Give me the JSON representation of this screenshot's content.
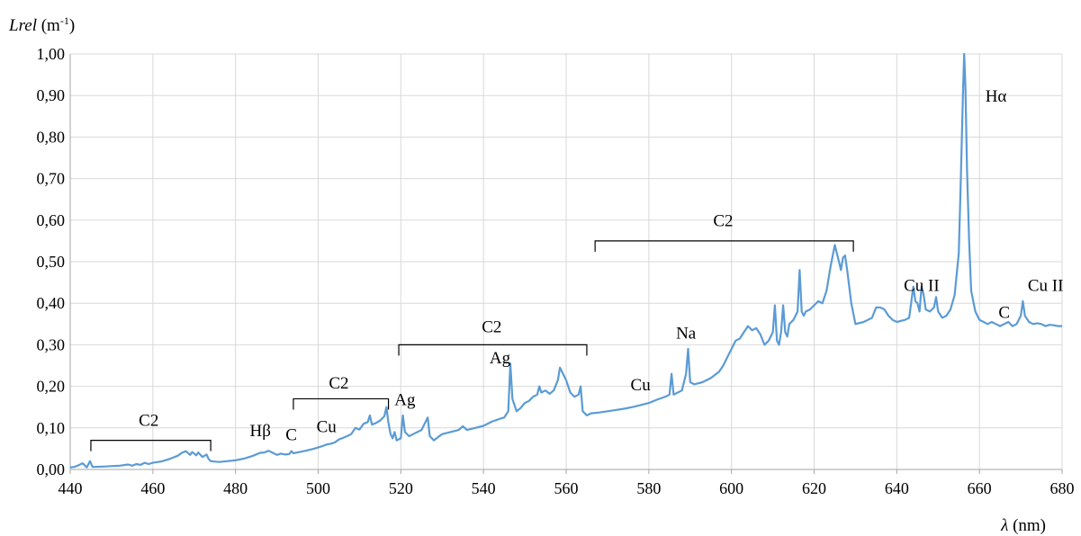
{
  "chart_data": {
    "type": "line",
    "title": "",
    "ylabel": {
      "italic": "Lrel",
      "unit_prefix": " (m",
      "unit_sup": "-1",
      "unit_suffix": ")"
    },
    "xlabel": {
      "italic": "λ",
      "unit": " (nm)"
    },
    "xlim": [
      440,
      680
    ],
    "ylim": [
      0,
      1
    ],
    "x_ticks": [
      440,
      460,
      480,
      500,
      520,
      540,
      560,
      580,
      600,
      620,
      640,
      660,
      680
    ],
    "y_ticks": [
      0,
      0.1,
      0.2,
      0.3,
      0.4,
      0.5,
      0.6,
      0.7,
      0.8,
      0.9,
      1.0
    ],
    "y_tick_labels": [
      "0,00",
      "0,10",
      "0,20",
      "0,30",
      "0,40",
      "0,50",
      "0,60",
      "0,70",
      "0,80",
      "0,90",
      "1,00"
    ],
    "grid": "vertical-and-horizontal",
    "line_color": "#5b9bd5",
    "series": [
      {
        "points": [
          [
            440,
            0.005
          ],
          [
            441,
            0.006
          ],
          [
            442,
            0.01
          ],
          [
            443,
            0.015
          ],
          [
            444,
            0.005
          ],
          [
            444.8,
            0.02
          ],
          [
            445.4,
            0.006
          ],
          [
            448,
            0.007
          ],
          [
            452,
            0.009
          ],
          [
            454,
            0.012
          ],
          [
            455,
            0.009
          ],
          [
            456,
            0.013
          ],
          [
            457,
            0.011
          ],
          [
            458,
            0.016
          ],
          [
            459,
            0.013
          ],
          [
            460,
            0.016
          ],
          [
            462,
            0.019
          ],
          [
            464,
            0.025
          ],
          [
            466,
            0.033
          ],
          [
            467,
            0.04
          ],
          [
            468,
            0.044
          ],
          [
            469,
            0.035
          ],
          [
            469.5,
            0.042
          ],
          [
            470.5,
            0.034
          ],
          [
            471,
            0.041
          ],
          [
            472,
            0.03
          ],
          [
            473,
            0.036
          ],
          [
            473.5,
            0.025
          ],
          [
            474,
            0.02
          ],
          [
            476,
            0.018
          ],
          [
            478,
            0.02
          ],
          [
            480,
            0.022
          ],
          [
            482,
            0.026
          ],
          [
            484,
            0.032
          ],
          [
            486,
            0.04
          ],
          [
            487,
            0.041
          ],
          [
            488,
            0.045
          ],
          [
            489,
            0.04
          ],
          [
            490,
            0.035
          ],
          [
            491,
            0.038
          ],
          [
            492,
            0.036
          ],
          [
            493,
            0.037
          ],
          [
            493.5,
            0.044
          ],
          [
            494,
            0.039
          ],
          [
            495,
            0.041
          ],
          [
            497,
            0.045
          ],
          [
            499,
            0.05
          ],
          [
            501,
            0.056
          ],
          [
            502,
            0.06
          ],
          [
            503,
            0.062
          ],
          [
            504,
            0.065
          ],
          [
            505,
            0.072
          ],
          [
            506,
            0.076
          ],
          [
            507,
            0.08
          ],
          [
            508,
            0.085
          ],
          [
            509,
            0.1
          ],
          [
            510,
            0.096
          ],
          [
            511,
            0.11
          ],
          [
            512,
            0.114
          ],
          [
            512.5,
            0.13
          ],
          [
            513,
            0.108
          ],
          [
            514,
            0.112
          ],
          [
            515,
            0.118
          ],
          [
            516,
            0.128
          ],
          [
            516.5,
            0.15
          ],
          [
            517,
            0.112
          ],
          [
            517.5,
            0.085
          ],
          [
            518,
            0.075
          ],
          [
            518.5,
            0.09
          ],
          [
            519,
            0.07
          ],
          [
            520,
            0.075
          ],
          [
            520.5,
            0.13
          ],
          [
            521,
            0.09
          ],
          [
            522,
            0.08
          ],
          [
            523,
            0.085
          ],
          [
            524,
            0.09
          ],
          [
            525,
            0.095
          ],
          [
            526,
            0.115
          ],
          [
            526.5,
            0.125
          ],
          [
            527,
            0.08
          ],
          [
            528,
            0.07
          ],
          [
            529,
            0.078
          ],
          [
            530,
            0.085
          ],
          [
            532,
            0.09
          ],
          [
            534,
            0.095
          ],
          [
            535,
            0.104
          ],
          [
            536,
            0.095
          ],
          [
            538,
            0.1
          ],
          [
            540,
            0.105
          ],
          [
            542,
            0.115
          ],
          [
            544,
            0.122
          ],
          [
            545,
            0.125
          ],
          [
            546,
            0.14
          ],
          [
            546.5,
            0.255
          ],
          [
            547,
            0.17
          ],
          [
            548,
            0.14
          ],
          [
            549,
            0.148
          ],
          [
            550,
            0.16
          ],
          [
            551,
            0.165
          ],
          [
            552,
            0.175
          ],
          [
            553,
            0.18
          ],
          [
            553.5,
            0.2
          ],
          [
            554,
            0.185
          ],
          [
            555,
            0.19
          ],
          [
            556,
            0.182
          ],
          [
            557,
            0.19
          ],
          [
            558,
            0.215
          ],
          [
            558.5,
            0.245
          ],
          [
            559,
            0.235
          ],
          [
            560,
            0.215
          ],
          [
            561,
            0.185
          ],
          [
            562,
            0.175
          ],
          [
            563,
            0.18
          ],
          [
            563.5,
            0.2
          ],
          [
            564,
            0.14
          ],
          [
            565,
            0.13
          ],
          [
            566,
            0.135
          ],
          [
            568,
            0.137
          ],
          [
            570,
            0.14
          ],
          [
            572,
            0.143
          ],
          [
            574,
            0.146
          ],
          [
            576,
            0.15
          ],
          [
            578,
            0.155
          ],
          [
            580,
            0.16
          ],
          [
            582,
            0.168
          ],
          [
            584,
            0.175
          ],
          [
            585,
            0.18
          ],
          [
            585.5,
            0.23
          ],
          [
            586,
            0.18
          ],
          [
            587,
            0.185
          ],
          [
            588,
            0.19
          ],
          [
            589,
            0.23
          ],
          [
            589.5,
            0.29
          ],
          [
            590,
            0.21
          ],
          [
            591,
            0.205
          ],
          [
            593,
            0.21
          ],
          [
            595,
            0.22
          ],
          [
            597,
            0.235
          ],
          [
            598,
            0.25
          ],
          [
            599,
            0.27
          ],
          [
            600,
            0.29
          ],
          [
            601,
            0.31
          ],
          [
            602,
            0.315
          ],
          [
            603,
            0.33
          ],
          [
            604,
            0.345
          ],
          [
            605,
            0.335
          ],
          [
            606,
            0.34
          ],
          [
            607,
            0.325
          ],
          [
            608,
            0.3
          ],
          [
            609,
            0.31
          ],
          [
            610,
            0.33
          ],
          [
            610.5,
            0.395
          ],
          [
            611,
            0.31
          ],
          [
            611.5,
            0.3
          ],
          [
            612,
            0.33
          ],
          [
            612.5,
            0.395
          ],
          [
            613,
            0.33
          ],
          [
            613.5,
            0.32
          ],
          [
            614,
            0.35
          ],
          [
            615,
            0.36
          ],
          [
            616,
            0.38
          ],
          [
            616.5,
            0.48
          ],
          [
            617,
            0.38
          ],
          [
            617.5,
            0.37
          ],
          [
            618,
            0.38
          ],
          [
            619,
            0.385
          ],
          [
            620,
            0.395
          ],
          [
            621,
            0.405
          ],
          [
            622,
            0.4
          ],
          [
            623,
            0.43
          ],
          [
            624,
            0.49
          ],
          [
            625,
            0.54
          ],
          [
            626,
            0.5
          ],
          [
            626.5,
            0.48
          ],
          [
            627,
            0.51
          ],
          [
            627.5,
            0.515
          ],
          [
            628,
            0.48
          ],
          [
            629,
            0.4
          ],
          [
            630,
            0.35
          ],
          [
            632,
            0.355
          ],
          [
            633,
            0.36
          ],
          [
            634,
            0.365
          ],
          [
            635,
            0.39
          ],
          [
            636,
            0.39
          ],
          [
            637,
            0.385
          ],
          [
            638,
            0.37
          ],
          [
            639,
            0.36
          ],
          [
            640,
            0.355
          ],
          [
            642,
            0.36
          ],
          [
            643,
            0.365
          ],
          [
            644,
            0.44
          ],
          [
            644.5,
            0.405
          ],
          [
            645,
            0.4
          ],
          [
            645.5,
            0.38
          ],
          [
            646,
            0.44
          ],
          [
            646.5,
            0.42
          ],
          [
            647,
            0.385
          ],
          [
            648,
            0.38
          ],
          [
            649,
            0.39
          ],
          [
            649.5,
            0.415
          ],
          [
            650,
            0.38
          ],
          [
            651,
            0.365
          ],
          [
            652,
            0.37
          ],
          [
            653,
            0.385
          ],
          [
            654,
            0.42
          ],
          [
            655,
            0.52
          ],
          [
            655.5,
            0.7
          ],
          [
            656,
            0.9
          ],
          [
            656.3,
            1.0
          ],
          [
            656.6,
            0.92
          ],
          [
            657,
            0.72
          ],
          [
            657.5,
            0.55
          ],
          [
            658,
            0.43
          ],
          [
            659,
            0.38
          ],
          [
            660,
            0.36
          ],
          [
            661,
            0.355
          ],
          [
            662,
            0.35
          ],
          [
            663,
            0.355
          ],
          [
            664,
            0.35
          ],
          [
            665,
            0.345
          ],
          [
            666,
            0.35
          ],
          [
            667,
            0.355
          ],
          [
            668,
            0.345
          ],
          [
            669,
            0.35
          ],
          [
            670,
            0.37
          ],
          [
            670.5,
            0.405
          ],
          [
            671,
            0.37
          ],
          [
            672,
            0.355
          ],
          [
            673,
            0.35
          ],
          [
            674,
            0.352
          ],
          [
            675,
            0.35
          ],
          [
            676,
            0.345
          ],
          [
            677,
            0.348
          ],
          [
            678,
            0.347
          ],
          [
            679,
            0.345
          ],
          [
            680,
            0.345
          ]
        ]
      }
    ],
    "annotations": [
      {
        "text": "C2",
        "x": 459,
        "y": 0.105
      },
      {
        "text": "Hβ",
        "x": 486,
        "y": 0.08
      },
      {
        "text": "C",
        "x": 493.5,
        "y": 0.07
      },
      {
        "text": "Cu",
        "x": 502,
        "y": 0.09
      },
      {
        "text": "C2",
        "x": 505,
        "y": 0.195
      },
      {
        "text": "Ag",
        "x": 521,
        "y": 0.155
      },
      {
        "text": "C2",
        "x": 542,
        "y": 0.33
      },
      {
        "text": "Ag",
        "x": 544,
        "y": 0.255
      },
      {
        "text": "Cu",
        "x": 578,
        "y": 0.19
      },
      {
        "text": "Na",
        "x": 589,
        "y": 0.315
      },
      {
        "text": "C2",
        "x": 598,
        "y": 0.585
      },
      {
        "text": "Cu II",
        "x": 646,
        "y": 0.43
      },
      {
        "text": "Hα",
        "x": 664,
        "y": 0.885
      },
      {
        "text": "C",
        "x": 666,
        "y": 0.365
      },
      {
        "text": "Cu II",
        "x": 676,
        "y": 0.43
      }
    ],
    "brackets": [
      {
        "x_start": 445,
        "x_end": 474,
        "y": 0.07
      },
      {
        "x_start": 494,
        "x_end": 517,
        "y": 0.17
      },
      {
        "x_start": 519.5,
        "x_end": 565,
        "y": 0.3
      },
      {
        "x_start": 567,
        "x_end": 629.5,
        "y": 0.55
      }
    ]
  }
}
